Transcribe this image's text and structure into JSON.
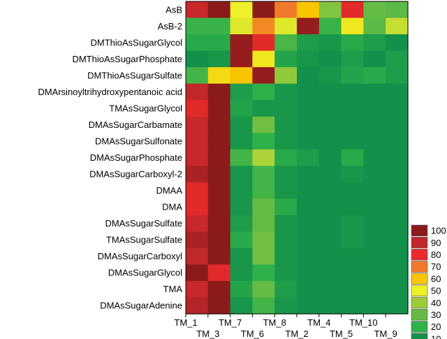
{
  "chart_data": {
    "type": "heatmap",
    "rows": [
      "AsB",
      "AsB-2",
      "DMThioAsSugarGlycol",
      "DMThioAsSugarPhosphate",
      "DMThioAsSugarSulfate",
      "DMArsinoyltrihydroxypentanoic acid",
      "TMAsSugarGlycol",
      "DMAsSugarCarbamate",
      "DMAsSugarSulfonate",
      "DMAsSugarPhosphate",
      "DMAsSugarCarboxyl-2",
      "DMAA",
      "DMA",
      "DMAsSugarSulfate",
      "TMAsSugarSulfate",
      "DMAsSugarCarboxyl",
      "DMAsSugarGlycol",
      "TMA",
      "DMAsSugarAdenine"
    ],
    "columns": [
      "TM_1",
      "TM_3",
      "TM_7",
      "TM_6",
      "TM_8",
      "TM_2",
      "TM_4",
      "TM_5",
      "TM_10",
      "TM_9"
    ],
    "values": [
      [
        88,
        100,
        50,
        100,
        70,
        60,
        35,
        82,
        30,
        28
      ],
      [
        22,
        22,
        48,
        68,
        48,
        98,
        22,
        52,
        28,
        45
      ],
      [
        18,
        18,
        98,
        82,
        25,
        14,
        12,
        18,
        14,
        10
      ],
      [
        10,
        12,
        98,
        52,
        16,
        12,
        10,
        14,
        8,
        14
      ],
      [
        24,
        55,
        60,
        98,
        38,
        10,
        12,
        16,
        18,
        14
      ],
      [
        90,
        100,
        14,
        20,
        12,
        10,
        10,
        10,
        10,
        10
      ],
      [
        82,
        100,
        16,
        12,
        12,
        10,
        10,
        10,
        10,
        10
      ],
      [
        88,
        100,
        12,
        32,
        12,
        10,
        10,
        10,
        10,
        10
      ],
      [
        88,
        100,
        12,
        20,
        12,
        10,
        10,
        10,
        10,
        10
      ],
      [
        88,
        100,
        24,
        42,
        18,
        14,
        10,
        18,
        10,
        10
      ],
      [
        94,
        100,
        12,
        24,
        12,
        10,
        10,
        12,
        10,
        10
      ],
      [
        82,
        100,
        12,
        24,
        12,
        10,
        10,
        10,
        10,
        10
      ],
      [
        82,
        100,
        12,
        30,
        18,
        10,
        10,
        10,
        10,
        10
      ],
      [
        88,
        100,
        14,
        30,
        12,
        10,
        10,
        12,
        10,
        10
      ],
      [
        94,
        100,
        18,
        32,
        12,
        10,
        10,
        12,
        10,
        10
      ],
      [
        90,
        100,
        12,
        32,
        12,
        10,
        10,
        10,
        10,
        10
      ],
      [
        100,
        82,
        12,
        20,
        12,
        10,
        10,
        10,
        10,
        10
      ],
      [
        88,
        100,
        16,
        30,
        14,
        10,
        10,
        10,
        10,
        10
      ],
      [
        92,
        100,
        12,
        24,
        12,
        10,
        10,
        10,
        10,
        10
      ]
    ],
    "colorbar": {
      "ticks": [
        100,
        90,
        80,
        70,
        60,
        50,
        40,
        30,
        20,
        10
      ],
      "colors": [
        "#8b1a1a",
        "#c0282a",
        "#ea2a2a",
        "#f07a2a",
        "#f9c400",
        "#eef029",
        "#9ccc3a",
        "#66bb44",
        "#2eb04a",
        "#13914a"
      ]
    },
    "xlabel": "",
    "ylabel": "",
    "title": ""
  }
}
